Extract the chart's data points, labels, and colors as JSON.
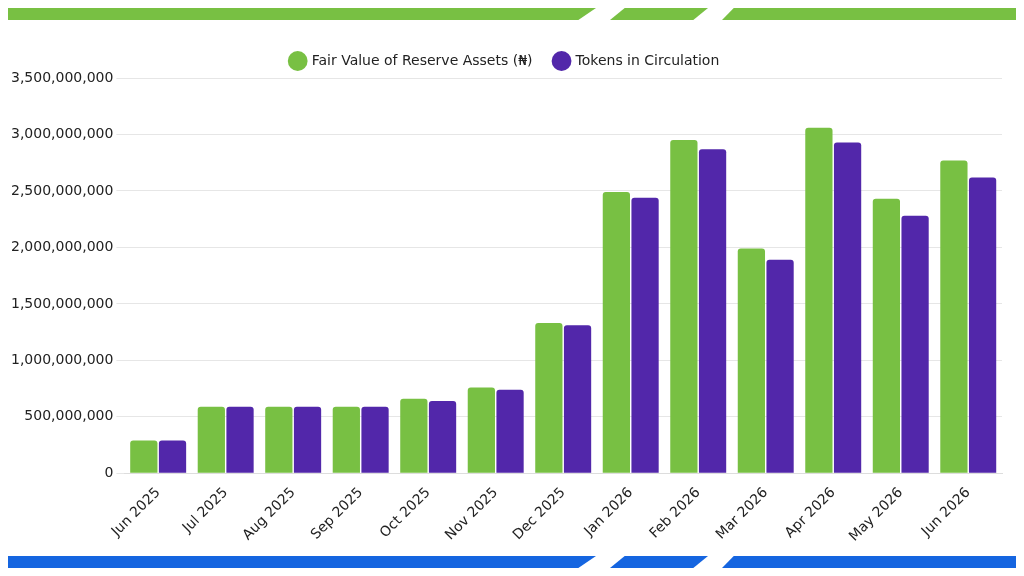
{
  "chart_data": {
    "type": "bar",
    "categories": [
      "Jun 2025",
      "Jul 2025",
      "Aug 2025",
      "Sep 2025",
      "Oct 2025",
      "Nov 2025",
      "Dec 2025",
      "Jan 2026",
      "Feb 2026",
      "Mar 2026",
      "Apr 2026",
      "May 2026",
      "Jun 2026"
    ],
    "series": [
      {
        "name": "Fair Value of Reserve Assets (₦)",
        "color": "#78c043",
        "values": [
          290000000,
          590000000,
          590000000,
          590000000,
          660000000,
          760000000,
          1330000000,
          2490000000,
          2950000000,
          1990000000,
          3060000000,
          2430000000,
          2770000000
        ]
      },
      {
        "name": "Tokens in Circulation",
        "color": "#5227aa",
        "values": [
          290000000,
          590000000,
          590000000,
          590000000,
          640000000,
          740000000,
          1310000000,
          2440000000,
          2870000000,
          1890000000,
          2930000000,
          2280000000,
          2620000000
        ]
      }
    ],
    "ylim": [
      0,
      3500000000
    ],
    "yticks": [
      0,
      {
        "value": 500000000,
        "label": "500,000,000"
      },
      {
        "value": 1000000000,
        "label": "1,000,000,000"
      },
      {
        "value": 1500000000,
        "label": "1,500,000,000"
      },
      {
        "value": 2000000000,
        "label": "2,000,000,000"
      },
      {
        "value": 2500000000,
        "label": "2,500,000,000"
      },
      {
        "value": 3000000000,
        "label": "3,000,000,000"
      },
      {
        "value": 3500000000,
        "label": "3,500,000,000"
      }
    ],
    "grid": "y",
    "legend": "top"
  }
}
